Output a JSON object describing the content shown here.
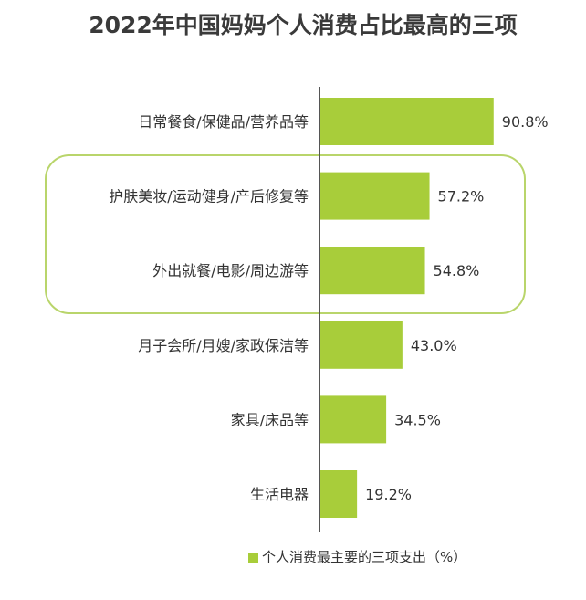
{
  "chart_data": {
    "type": "bar",
    "orientation": "horizontal",
    "title": "2022年中国妈妈个人消费占比最高的三项",
    "categories": [
      "日常餐食/保健品/营养品等",
      "护肤美妆/运动健身/产后修复等",
      "外出就餐/电影/周边游等",
      "月子会所/月嫂/家政保洁等",
      "家具/床品等",
      "生活电器"
    ],
    "series": [
      {
        "name": "个人消费最主要的三项支出（%）",
        "values": [
          90.8,
          57.2,
          54.8,
          43.0,
          34.5,
          19.2
        ],
        "labels": [
          "90.8%",
          "57.2%",
          "54.8%",
          "43.0%",
          "34.5%",
          "19.2%"
        ]
      }
    ],
    "xlim": [
      0,
      100
    ],
    "legend_position": "bottom",
    "highlighted_categories": [
      "护肤美妆/运动健身/产后修复等",
      "外出就餐/电影/周边游等"
    ],
    "colors": {
      "bar": "#a8cd3a",
      "highlight_border": "#b9d56b",
      "axis": "#555555"
    }
  }
}
